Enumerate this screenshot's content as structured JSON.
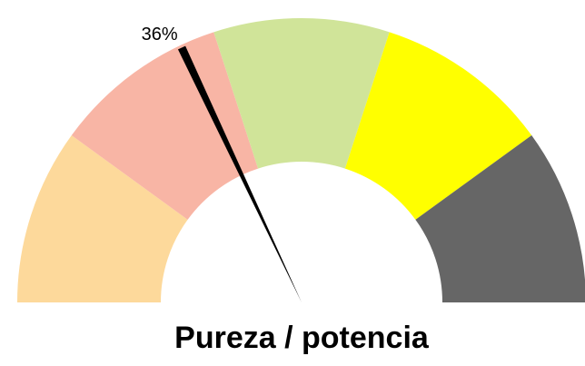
{
  "chart_data": {
    "type": "gauge",
    "title": "Pureza / potencia",
    "value": 36,
    "value_label": "36%",
    "range": [
      0,
      100
    ],
    "bands": [
      {
        "from": 0,
        "to": 20,
        "color": "#fdd99b"
      },
      {
        "from": 20,
        "to": 40,
        "color": "#f8b5a5"
      },
      {
        "from": 40,
        "to": 60,
        "color": "#d0e499"
      },
      {
        "from": 60,
        "to": 80,
        "color": "#ffff00"
      },
      {
        "from": 80,
        "to": 100,
        "color": "#666666"
      }
    ],
    "needle_color": "#000000"
  }
}
